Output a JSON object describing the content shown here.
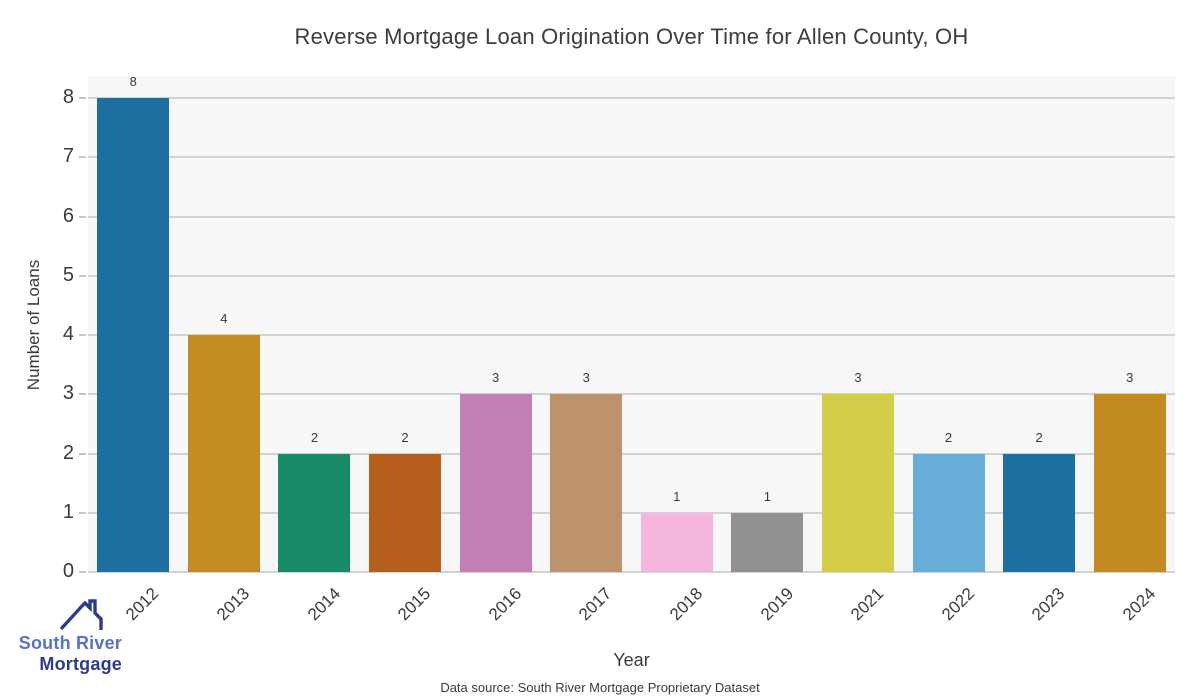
{
  "chart_data": {
    "type": "bar",
    "title": "Reverse Mortgage Loan Origination Over Time for Allen County, OH",
    "xlabel": "Year",
    "ylabel": "Number of Loans",
    "categories": [
      "2012",
      "2013",
      "2014",
      "2015",
      "2016",
      "2017",
      "2018",
      "2019",
      "2021",
      "2022",
      "2023",
      "2024"
    ],
    "values": [
      8,
      4,
      2,
      2,
      3,
      3,
      1,
      1,
      3,
      2,
      2,
      3
    ],
    "bar_colors": [
      "#1d6fa0",
      "#c38b21",
      "#178a68",
      "#b65e1b",
      "#c37fb5",
      "#bd926c",
      "#f4b6dd",
      "#919191",
      "#d4cd48",
      "#66aed8",
      "#1d6f9f",
      "#c28a20"
    ],
    "ylim": [
      0,
      8
    ],
    "yticks": [
      0,
      1,
      2,
      3,
      4,
      5,
      6,
      7,
      8
    ],
    "grid": true,
    "value_labels": true,
    "legend": "none"
  },
  "footer": {
    "data_source": "Data source: South River Mortgage Proprietary Dataset"
  },
  "logo": {
    "line1": "South River",
    "line2": "Mortgage",
    "color_primary": "#5673c4",
    "color_secondary": "#2e3b8c"
  },
  "colors": {
    "plot_background": "#f7f7f7",
    "gridline": "#d2d2d2",
    "text": "#3a3a3a",
    "tick": "#c6c6c6"
  }
}
